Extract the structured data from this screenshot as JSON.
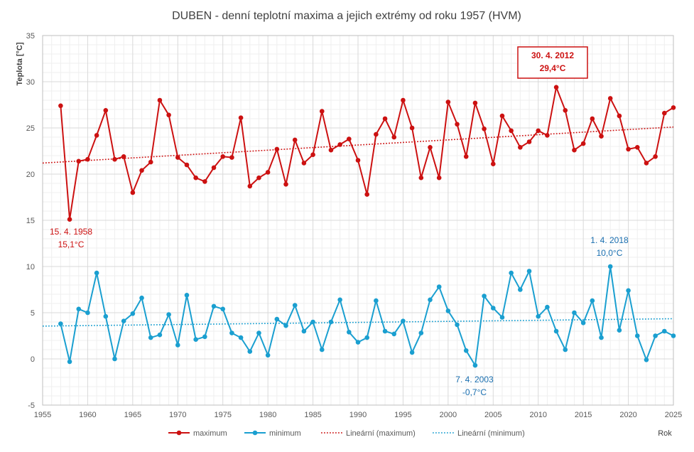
{
  "chart_data": {
    "type": "line",
    "title": "DUBEN - denní teplotní maxima a jejich extrémy od roku 1957 (HVM)",
    "ylabel": "Teplota [°C]",
    "xlabel": "Rok",
    "xlim": [
      1955,
      2025
    ],
    "ylim": [
      -5,
      35
    ],
    "x_ticks": [
      1955,
      1960,
      1965,
      1970,
      1975,
      1980,
      1985,
      1990,
      1995,
      2000,
      2005,
      2010,
      2015,
      2020,
      2025
    ],
    "y_ticks": [
      -5,
      0,
      5,
      10,
      15,
      20,
      25,
      30,
      35
    ],
    "grid": true,
    "legend_position": "bottom",
    "x": [
      1957,
      1958,
      1959,
      1960,
      1961,
      1962,
      1963,
      1964,
      1965,
      1966,
      1967,
      1968,
      1969,
      1970,
      1971,
      1972,
      1973,
      1974,
      1975,
      1976,
      1977,
      1978,
      1979,
      1980,
      1981,
      1982,
      1983,
      1984,
      1985,
      1986,
      1987,
      1988,
      1989,
      1990,
      1991,
      1992,
      1993,
      1994,
      1995,
      1996,
      1997,
      1998,
      1999,
      2000,
      2001,
      2002,
      2003,
      2004,
      2005,
      2006,
      2007,
      2008,
      2009,
      2010,
      2011,
      2012,
      2013,
      2014,
      2015,
      2016,
      2017,
      2018,
      2019,
      2020,
      2021,
      2022,
      2023,
      2024,
      2025
    ],
    "series": [
      {
        "name": "maximum",
        "color": "#cc1111",
        "values": [
          27.4,
          15.1,
          21.4,
          21.6,
          24.2,
          26.9,
          21.6,
          21.9,
          18.0,
          20.4,
          21.3,
          28.0,
          26.4,
          21.8,
          21.0,
          19.6,
          19.2,
          20.7,
          21.9,
          21.8,
          26.1,
          18.7,
          19.6,
          20.2,
          22.7,
          18.9,
          23.7,
          21.2,
          22.1,
          26.8,
          22.6,
          23.2,
          23.8,
          21.5,
          17.8,
          24.3,
          26.0,
          24.0,
          28.0,
          25.0,
          19.6,
          22.9,
          19.6,
          27.8,
          25.4,
          21.9,
          27.7,
          24.9,
          21.1,
          26.3,
          24.7,
          22.9,
          23.5,
          24.7,
          24.2,
          29.4,
          26.9,
          22.6,
          23.3,
          26.0,
          24.1,
          28.2,
          26.3,
          22.7,
          22.9,
          21.2,
          21.9,
          26.6,
          27.2
        ]
      },
      {
        "name": "minimum",
        "color": "#1a9fd0",
        "values": [
          3.8,
          -0.3,
          5.4,
          5.0,
          9.3,
          4.6,
          0.0,
          4.1,
          4.9,
          6.6,
          2.3,
          2.6,
          4.8,
          1.5,
          6.9,
          2.1,
          2.4,
          5.7,
          5.4,
          2.8,
          2.3,
          0.8,
          2.8,
          0.4,
          4.3,
          3.6,
          5.8,
          3.0,
          4.0,
          1.0,
          4.0,
          6.4,
          2.9,
          1.8,
          2.3,
          6.3,
          3.0,
          2.7,
          4.1,
          0.7,
          2.8,
          6.4,
          7.8,
          5.2,
          3.7,
          0.9,
          -0.7,
          6.8,
          5.5,
          4.5,
          9.3,
          7.5,
          9.5,
          4.6,
          5.6,
          3.0,
          1.0,
          5.0,
          3.9,
          6.3,
          2.3,
          10.0,
          3.1,
          7.4,
          2.5,
          -0.1,
          2.5,
          3.0,
          2.5
        ]
      },
      {
        "name": "Lineární (maximum)",
        "color": "#cc1111",
        "trend": [
          21.2,
          25.1
        ]
      },
      {
        "name": "Lineární (minimum)",
        "color": "#1a9fd0",
        "trend": [
          3.55,
          4.35
        ]
      }
    ],
    "annotations": [
      {
        "line1": "15. 4. 1958",
        "line2": "15,1°C",
        "color": "#cc1111",
        "boxed": false
      },
      {
        "line1": "30. 4. 2012",
        "line2": "29,4°C",
        "color": "#cc1111",
        "boxed": true
      },
      {
        "line1": "1. 4. 2018",
        "line2": "10,0°C",
        "color": "#1a6fb0",
        "boxed": false
      },
      {
        "line1": "7. 4. 2003",
        "line2": "-0,7°C",
        "color": "#1a6fb0",
        "boxed": false
      }
    ]
  }
}
